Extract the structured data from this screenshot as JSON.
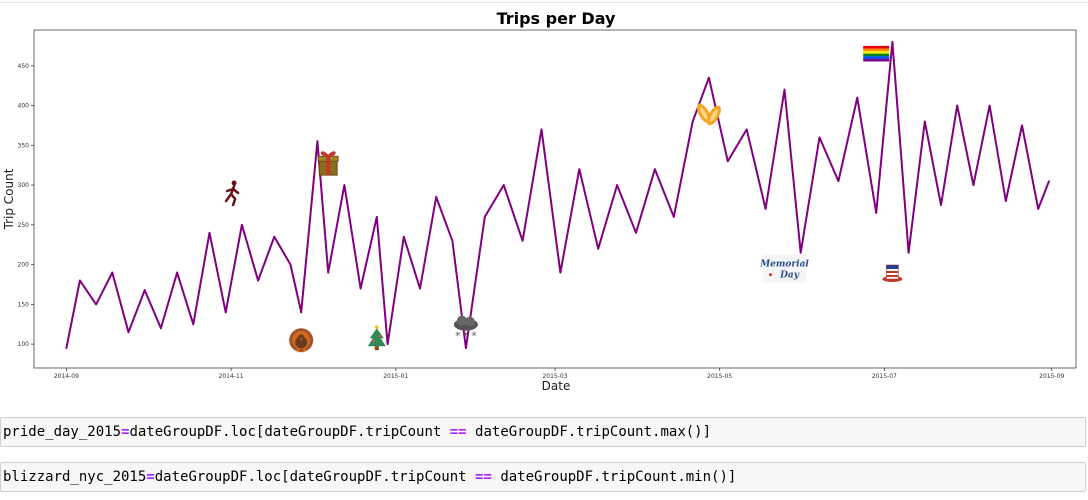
{
  "chart_data": {
    "type": "line",
    "title": "Trips per Day",
    "xlabel": "Date",
    "ylabel": "Trip Count",
    "x_range": [
      "2014-08-20",
      "2015-09-10"
    ],
    "ylim": [
      70,
      495
    ],
    "yticks": [
      100,
      150,
      200,
      250,
      300,
      350,
      400,
      450
    ],
    "xticks": [
      "2014-09",
      "2014-11",
      "2015-01",
      "2015-03",
      "2015-05",
      "2015-07",
      "2015-09"
    ],
    "line_color": "#800080",
    "grid": false,
    "series": [
      {
        "x": [
          "2014-09-01",
          "2014-09-06",
          "2014-09-12",
          "2014-09-18",
          "2014-09-24",
          "2014-09-30",
          "2014-10-06",
          "2014-10-12",
          "2014-10-18",
          "2014-10-24",
          "2014-10-30",
          "2014-11-05",
          "2014-11-11",
          "2014-11-17",
          "2014-11-23",
          "2014-11-27",
          "2014-12-03",
          "2014-12-07",
          "2014-12-13",
          "2014-12-19",
          "2014-12-25",
          "2014-12-29",
          "2015-01-04",
          "2015-01-10",
          "2015-01-16",
          "2015-01-22",
          "2015-01-27",
          "2015-02-03",
          "2015-02-10",
          "2015-02-17",
          "2015-02-24",
          "2015-03-03",
          "2015-03-10",
          "2015-03-17",
          "2015-03-24",
          "2015-03-31",
          "2015-04-07",
          "2015-04-14",
          "2015-04-21",
          "2015-04-27",
          "2015-05-04",
          "2015-05-11",
          "2015-05-18",
          "2015-05-25",
          "2015-05-31",
          "2015-06-07",
          "2015-06-14",
          "2015-06-21",
          "2015-06-28",
          "2015-07-04",
          "2015-07-10",
          "2015-07-16",
          "2015-07-22",
          "2015-07-28",
          "2015-08-03",
          "2015-08-09",
          "2015-08-15",
          "2015-08-21",
          "2015-08-27",
          "2015-08-31"
        ],
        "y": [
          95,
          180,
          150,
          190,
          115,
          168,
          120,
          190,
          125,
          240,
          140,
          250,
          180,
          235,
          200,
          140,
          355,
          190,
          300,
          170,
          260,
          100,
          235,
          170,
          285,
          230,
          95,
          260,
          300,
          230,
          370,
          190,
          320,
          220,
          300,
          240,
          320,
          260,
          380,
          435,
          330,
          370,
          270,
          420,
          215,
          360,
          305,
          410,
          265,
          480,
          215,
          380,
          275,
          400,
          300,
          400,
          280,
          375,
          270,
          305
        ]
      }
    ],
    "annotations": [
      {
        "name": "marathon",
        "x": "2014-11-01",
        "y": 290
      },
      {
        "name": "christmas-gift",
        "x": "2014-12-07",
        "y": 325
      },
      {
        "name": "thanksgiving-turkey",
        "x": "2014-11-27",
        "y": 105
      },
      {
        "name": "christmas-tree",
        "x": "2014-12-25",
        "y": 105
      },
      {
        "name": "blizzard-snow",
        "x": "2015-01-27",
        "y": 122
      },
      {
        "name": "easter-bunny-ears",
        "x": "2015-04-27",
        "y": 390
      },
      {
        "name": "memorial-day-logo",
        "x": "2015-05-25",
        "y": 195
      },
      {
        "name": "pride-rainbow-flag",
        "x": "2015-06-28",
        "y": 465
      },
      {
        "name": "uncle-sam-hat",
        "x": "2015-07-04",
        "y": 192
      }
    ],
    "memorial_day_text": [
      "Memorial",
      "Day"
    ]
  },
  "cells": {
    "cell1": {
      "prefix": "pride_day_2015",
      "op1": "=",
      "mid": "dateGroupDF.loc[dateGroupDF.tripCount ",
      "op2": "==",
      "suffix": " dateGroupDF.tripCount.max()]"
    },
    "cell2": {
      "prefix": "blizzard_nyc_2015",
      "op1": "=",
      "mid": "dateGroupDF.loc[dateGroupDF.tripCount ",
      "op2": "==",
      "suffix": " dateGroupDF.tripCount.min()]"
    }
  }
}
